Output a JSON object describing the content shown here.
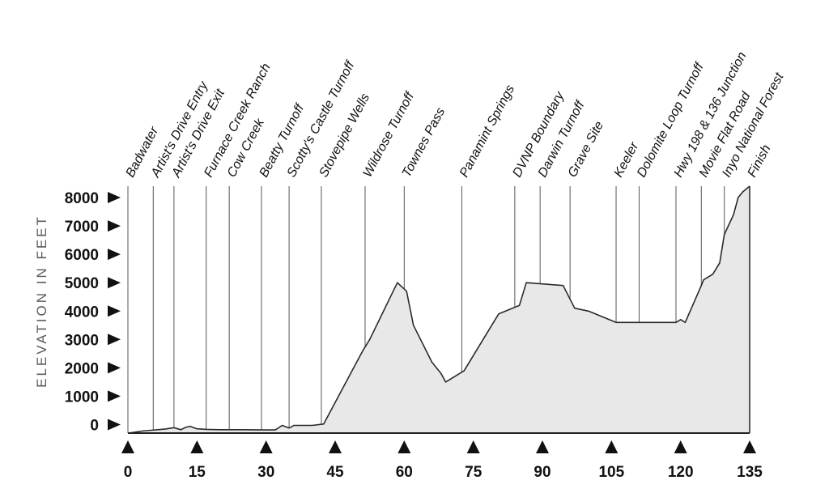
{
  "chart_data": {
    "type": "area",
    "ylabel": "ELEVATION IN FEET",
    "xlabel": "",
    "title": "",
    "xlim": [
      0,
      135
    ],
    "ylim": [
      -300,
      8400
    ],
    "x_ticks": [
      "0",
      "15",
      "30",
      "45",
      "60",
      "75",
      "90",
      "105",
      "120",
      "135"
    ],
    "y_ticks": [
      "0",
      "1000",
      "2000",
      "3000",
      "4000",
      "5000",
      "6000",
      "7000",
      "8000"
    ],
    "grid": false,
    "series": [
      {
        "x": [
          0,
          1,
          3,
          5,
          8,
          10,
          11.5,
          12.5,
          13.5,
          15,
          17,
          20,
          25,
          29,
          32,
          33.5,
          35,
          35.5,
          36,
          40,
          42.5,
          49,
          51,
          52.5,
          58.5,
          60.5,
          62,
          66,
          68,
          69,
          72,
          73,
          79,
          80.5,
          85,
          86.5,
          94.5,
          97,
          100,
          106,
          111,
          119,
          120,
          121,
          124.5,
          125,
          127,
          128.5,
          129.5,
          131.5,
          132.5,
          133.5,
          135
        ],
        "y": [
          -300,
          -280,
          -230,
          -200,
          -160,
          -110,
          -180,
          -100,
          -60,
          -150,
          -170,
          -180,
          -180,
          -190,
          -190,
          -30,
          -120,
          -80,
          -30,
          -30,
          20,
          2000,
          2600,
          3000,
          5000,
          4700,
          3500,
          2200,
          1800,
          1500,
          1800,
          1900,
          3500,
          3900,
          4200,
          5000,
          4900,
          4100,
          4000,
          3600,
          3600,
          3600,
          3700,
          3600,
          4900,
          5100,
          5300,
          5700,
          6700,
          7400,
          8000,
          8200,
          8400
        ]
      }
    ],
    "landmarks": [
      {
        "name": "Badwater",
        "x": 0
      },
      {
        "name": "Artist's Drive Entry",
        "x": 5.5
      },
      {
        "name": "Artist's Drive Exit",
        "x": 10
      },
      {
        "name": "Furnace Creek Ranch",
        "x": 17
      },
      {
        "name": "Cow Creek",
        "x": 22
      },
      {
        "name": "Beatty Turnoff",
        "x": 29
      },
      {
        "name": "Scotty's Castle Turnoff",
        "x": 35
      },
      {
        "name": "Stovepipe Wells",
        "x": 42
      },
      {
        "name": "Wildrose Turnoff",
        "x": 51.5
      },
      {
        "name": "Townes Pass",
        "x": 60
      },
      {
        "name": "Panamint Springs",
        "x": 72.5
      },
      {
        "name": "DVNP Boundary",
        "x": 84
      },
      {
        "name": "Darwin Turnoff",
        "x": 89.5
      },
      {
        "name": "Grave Site",
        "x": 96
      },
      {
        "name": "Keeler",
        "x": 106
      },
      {
        "name": "Dolomite Loop Turnoff",
        "x": 111
      },
      {
        "name": "Hwy 198 & 136 Junction",
        "x": 119
      },
      {
        "name": "Movie Flat Road",
        "x": 124.5
      },
      {
        "name": "Inyo National Forest",
        "x": 129.5
      },
      {
        "name": "Finish",
        "x": 135
      }
    ],
    "colors": {
      "fill": "#e8e8e8",
      "line": "#2a2a2a",
      "text": "#111111",
      "ylabel": "#5a5a5a"
    }
  }
}
